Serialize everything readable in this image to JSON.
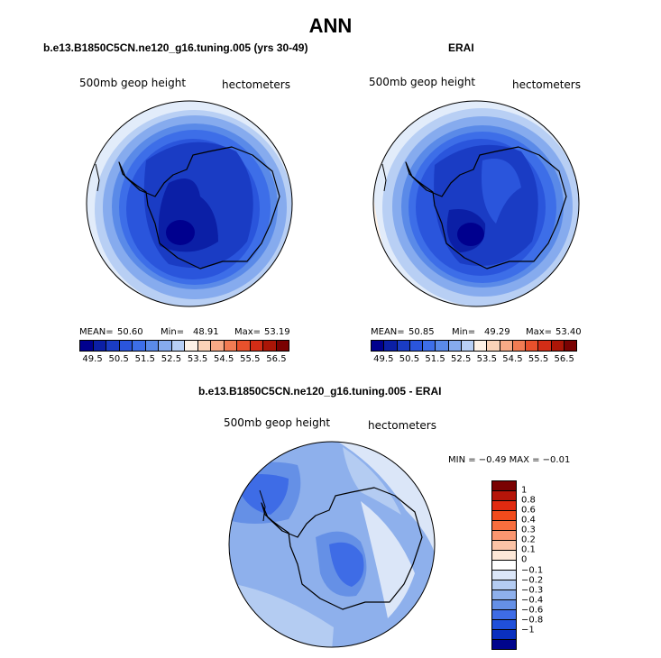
{
  "title": "ANN",
  "colors": {
    "abs_scale": [
      "#00008e",
      "#0b1fa6",
      "#1a3cc4",
      "#2a55dc",
      "#3d6ee8",
      "#5a8ae8",
      "#86abee",
      "#b8cff4",
      "#fdf1e6",
      "#fbd3b8",
      "#f7aa86",
      "#f27c53",
      "#e8512c",
      "#d22d16",
      "#ab1607",
      "#7a0202"
    ],
    "diff_scale": [
      "#7a0202",
      "#b51509",
      "#e02a10",
      "#f24b1c",
      "#f86e3e",
      "#fa9670",
      "#fbc3a6",
      "#fde8d8",
      "#ffffff",
      "#dbe6f8",
      "#b4ccf2",
      "#8eb0ec",
      "#6590e6",
      "#3e6ce6",
      "#2050da",
      "#0a30bf",
      "#00058c"
    ],
    "ocean_outer": "#e2ecfa",
    "ocean_bg": "#b8cff4"
  },
  "panels": [
    {
      "title": "b.e13.B1850C5CN.ne120_g16.tuning.005 (yrs 30-49)",
      "variable": "500mb geop height",
      "units": "hectometers",
      "mean_label": "MEAN=",
      "mean": "50.60",
      "min_label": "Min=",
      "min": "48.91",
      "max_label": "Max=",
      "max": "53.19",
      "colorbar_ticks": [
        "49.5",
        "50.5",
        "51.5",
        "52.5",
        "53.5",
        "54.5",
        "55.5",
        "56.5"
      ]
    },
    {
      "title": "ERAI",
      "variable": "500mb geop height",
      "units": "hectometers",
      "mean_label": "MEAN=",
      "mean": "50.85",
      "min_label": "Min=",
      "min": "49.29",
      "max_label": "Max=",
      "max": "53.40",
      "colorbar_ticks": [
        "49.5",
        "50.5",
        "51.5",
        "52.5",
        "53.5",
        "54.5",
        "55.5",
        "56.5"
      ]
    }
  ],
  "diff": {
    "title": "b.e13.B1850C5CN.ne120_g16.tuning.005 - ERAI",
    "variable": "500mb geop height",
    "units": "hectometers",
    "minmax": "MIN =  −0.49  MAX =  −0.01",
    "colorbar_ticks": [
      "1",
      "0.8",
      "0.6",
      "0.4",
      "0.3",
      "0.2",
      "0.1",
      "0",
      "−0.1",
      "−0.2",
      "−0.3",
      "−0.4",
      "−0.6",
      "−0.8",
      "−1"
    ]
  }
}
